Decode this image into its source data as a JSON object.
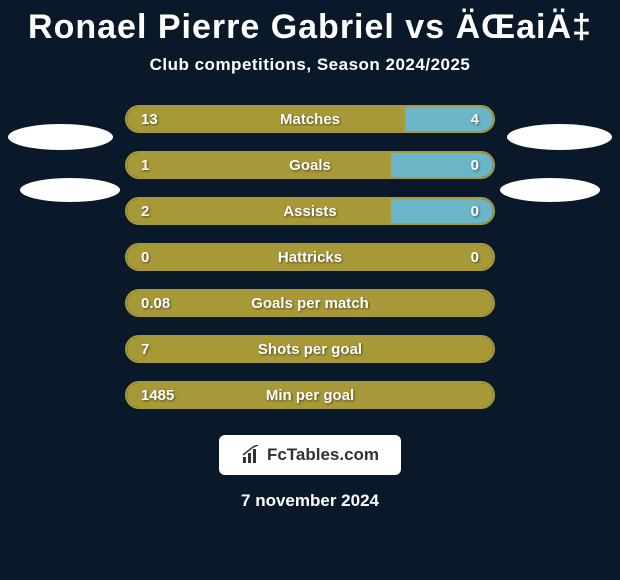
{
  "title": "Ronael Pierre Gabriel vs ÄŒaiÄ‡",
  "subtitle": "Club competitions, Season 2024/2025",
  "colors": {
    "background": "#0a1929",
    "bar_border": "#a89938",
    "bar_left": "#a89938",
    "bar_right": "#6bb5c9",
    "text": "#ffffff"
  },
  "stats": [
    {
      "label": "Matches",
      "left_value": "13",
      "right_value": "4",
      "left_pct": 76,
      "right_pct": 24
    },
    {
      "label": "Goals",
      "left_value": "1",
      "right_value": "0",
      "left_pct": 72,
      "right_pct": 28
    },
    {
      "label": "Assists",
      "left_value": "2",
      "right_value": "0",
      "left_pct": 72,
      "right_pct": 28
    },
    {
      "label": "Hattricks",
      "left_value": "0",
      "right_value": "0",
      "left_pct": 100,
      "right_pct": 0
    },
    {
      "label": "Goals per match",
      "left_value": "0.08",
      "right_value": "",
      "left_pct": 100,
      "right_pct": 0
    },
    {
      "label": "Shots per goal",
      "left_value": "7",
      "right_value": "",
      "left_pct": 100,
      "right_pct": 0
    },
    {
      "label": "Min per goal",
      "left_value": "1485",
      "right_value": "",
      "left_pct": 100,
      "right_pct": 0
    }
  ],
  "footer": {
    "logo_text": "FcTables.com",
    "date": "7 november 2024"
  }
}
